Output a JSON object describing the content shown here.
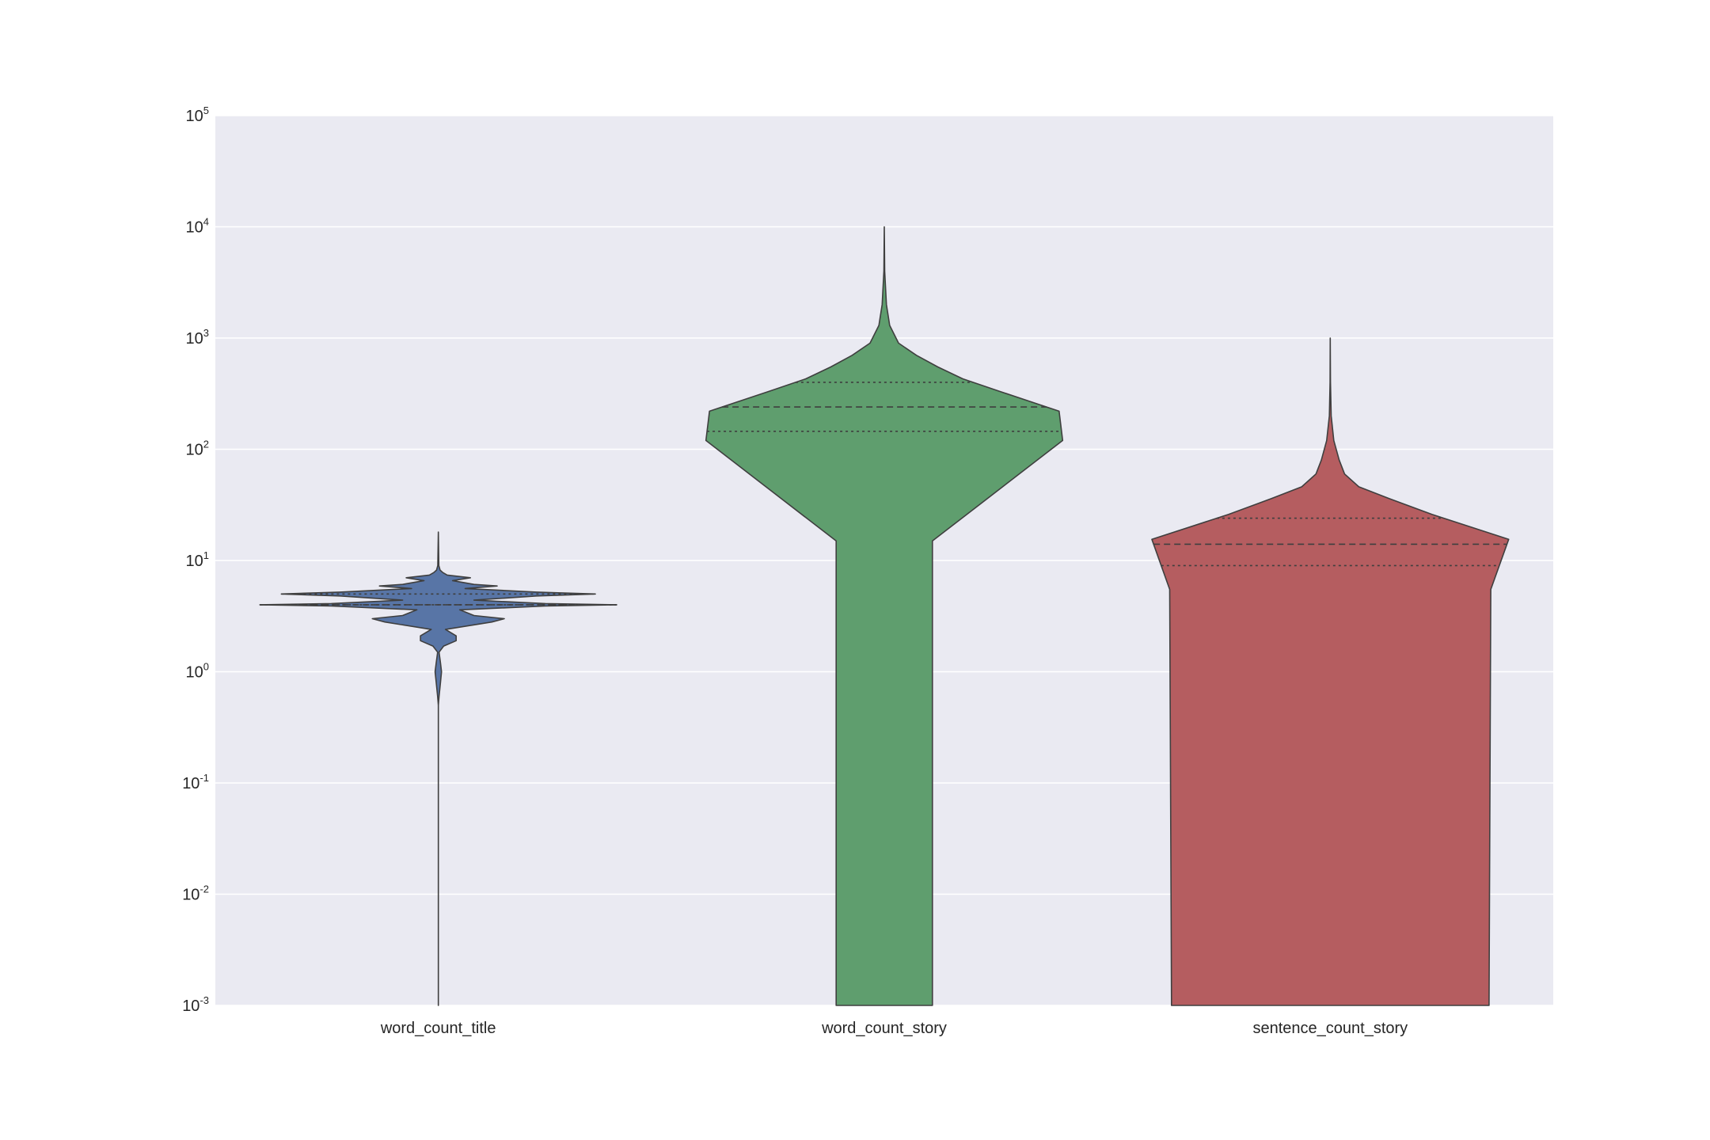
{
  "chart_data": {
    "type": "violin",
    "title": "",
    "xlabel": "",
    "ylabel": "",
    "yscale": "log",
    "ylim": [
      0.001,
      100000
    ],
    "yticks": [
      {
        "value": 0.001,
        "base": "10",
        "exp": "-3"
      },
      {
        "value": 0.01,
        "base": "10",
        "exp": "-2"
      },
      {
        "value": 0.1,
        "base": "10",
        "exp": "-1"
      },
      {
        "value": 1,
        "base": "10",
        "exp": "0"
      },
      {
        "value": 10,
        "base": "10",
        "exp": "1"
      },
      {
        "value": 100,
        "base": "10",
        "exp": "2"
      },
      {
        "value": 1000,
        "base": "10",
        "exp": "3"
      },
      {
        "value": 10000,
        "base": "10",
        "exp": "4"
      },
      {
        "value": 100000,
        "base": "10",
        "exp": "5"
      }
    ],
    "grid": true,
    "categories": [
      "word_count_title",
      "word_count_story",
      "sentence_count_story"
    ],
    "series": [
      {
        "category": "word_count_title",
        "color": "#5875a6",
        "quartiles": {
          "q1": 4,
          "median": 4,
          "q3": 5
        },
        "max": 18,
        "profile": [
          [
            0.001,
            0.0
          ],
          [
            0.5,
            0.0
          ],
          [
            0.6,
            0.004
          ],
          [
            0.8,
            0.012
          ],
          [
            1.0,
            0.018
          ],
          [
            1.2,
            0.012
          ],
          [
            1.5,
            0.004
          ],
          [
            1.7,
            0.03
          ],
          [
            1.9,
            0.1
          ],
          [
            2.1,
            0.1
          ],
          [
            2.4,
            0.04
          ],
          [
            2.8,
            0.3
          ],
          [
            3.0,
            0.37
          ],
          [
            3.2,
            0.2
          ],
          [
            3.6,
            0.12
          ],
          [
            3.9,
            0.6
          ],
          [
            4.0,
            1.0
          ],
          [
            4.1,
            0.6
          ],
          [
            4.4,
            0.2
          ],
          [
            4.8,
            0.55
          ],
          [
            5.0,
            0.88
          ],
          [
            5.2,
            0.55
          ],
          [
            5.6,
            0.15
          ],
          [
            5.9,
            0.33
          ],
          [
            6.1,
            0.2
          ],
          [
            6.6,
            0.08
          ],
          [
            7.0,
            0.18
          ],
          [
            7.4,
            0.05
          ],
          [
            7.8,
            0.025
          ],
          [
            8.2,
            0.01
          ],
          [
            9.0,
            0.003
          ],
          [
            18,
            0.0
          ]
        ]
      },
      {
        "category": "word_count_story",
        "color": "#5f9e6e",
        "quartiles": {
          "q1": 145,
          "median": 240,
          "q3": 400
        },
        "max": 10000,
        "profile": [
          [
            0.001,
            0.27
          ],
          [
            15,
            0.27
          ],
          [
            120,
            1.0
          ],
          [
            220,
            0.98
          ],
          [
            330,
            0.65
          ],
          [
            430,
            0.44
          ],
          [
            550,
            0.3
          ],
          [
            700,
            0.18
          ],
          [
            900,
            0.08
          ],
          [
            1300,
            0.03
          ],
          [
            2000,
            0.012
          ],
          [
            4000,
            0.002
          ],
          [
            10000,
            0.0
          ]
        ]
      },
      {
        "category": "sentence_count_story",
        "color": "#b55d60",
        "quartiles": {
          "q1": 9,
          "median": 14,
          "q3": 24
        },
        "max": 1000,
        "profile": [
          [
            0.001,
            0.89
          ],
          [
            5.5,
            0.9
          ],
          [
            15.5,
            1.0
          ],
          [
            26,
            0.57
          ],
          [
            36,
            0.33
          ],
          [
            46,
            0.16
          ],
          [
            60,
            0.08
          ],
          [
            80,
            0.05
          ],
          [
            120,
            0.02
          ],
          [
            200,
            0.005
          ],
          [
            400,
            0.001
          ],
          [
            1000,
            0.0
          ]
        ]
      }
    ]
  }
}
